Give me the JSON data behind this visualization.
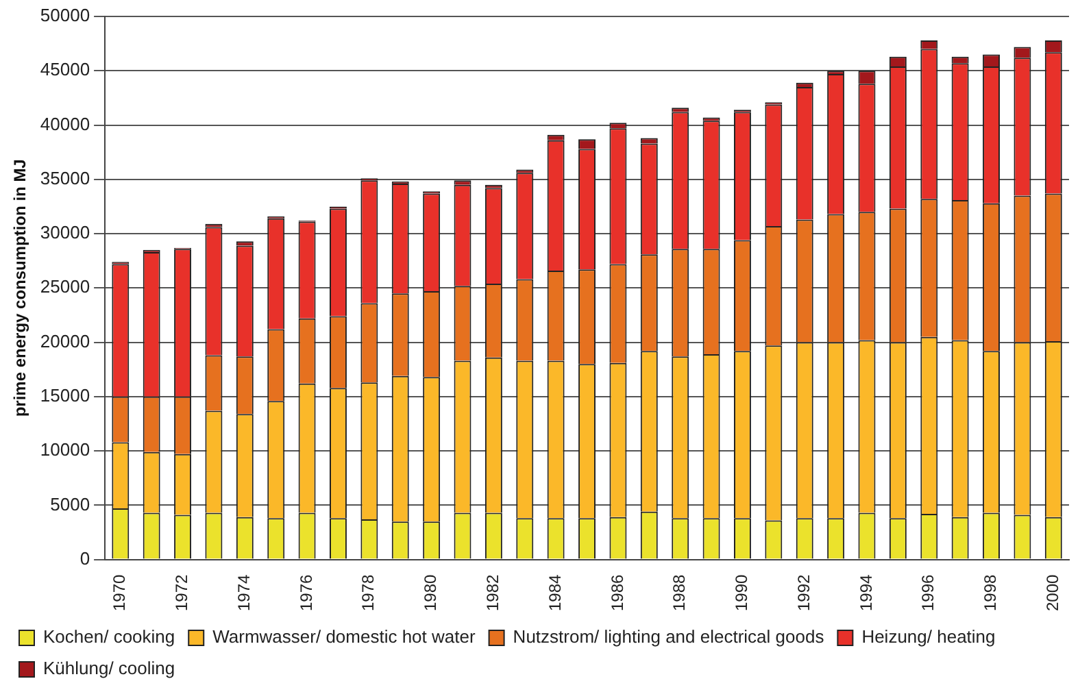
{
  "chart_data": {
    "type": "bar",
    "stacked": true,
    "ylabel": "prime energy consumption in MJ",
    "categories": [
      "1970",
      null,
      "1972",
      null,
      "1974",
      null,
      "1976",
      null,
      "1978",
      null,
      "1980",
      null,
      "1982",
      null,
      "1984",
      null,
      "1986",
      null,
      "1988",
      null,
      "1990",
      null,
      "1992",
      null,
      "1994",
      null,
      "1996",
      null,
      "1998",
      null,
      "2000"
    ],
    "series": [
      {
        "name": "Kochen/ cooking",
        "color": "#ebe22c",
        "values": [
          4700,
          4300,
          4100,
          4300,
          3900,
          3800,
          4300,
          3800,
          3700,
          3500,
          3500,
          4300,
          4300,
          3800,
          3800,
          3800,
          3900,
          4400,
          3800,
          3800,
          3800,
          3600,
          3800,
          3800,
          4300,
          3800,
          4200,
          3900,
          4300,
          4100,
          3900
        ]
      },
      {
        "name": "Warmwasser/ domestic hot water",
        "color": "#fbb829",
        "values": [
          6100,
          5600,
          5600,
          9400,
          9500,
          10800,
          11900,
          12000,
          12600,
          13400,
          13300,
          14000,
          14300,
          14500,
          14500,
          14200,
          14200,
          14800,
          14900,
          15100,
          15400,
          16100,
          16200,
          16200,
          15900,
          16200,
          16300,
          16300,
          14900,
          15900,
          16200
        ]
      },
      {
        "name": "Nutzstrom/ lighting and electrical goods",
        "color": "#e6711f",
        "values": [
          4200,
          5100,
          5300,
          5100,
          5300,
          6600,
          6000,
          6600,
          7300,
          7600,
          7900,
          6900,
          6800,
          7500,
          8300,
          8700,
          9100,
          8900,
          9900,
          9700,
          10200,
          11000,
          11300,
          11800,
          11800,
          12300,
          12700,
          12900,
          13600,
          13500,
          13600
        ]
      },
      {
        "name": "Heizung/ heating",
        "color": "#e8312a",
        "values": [
          12200,
          13300,
          13600,
          11800,
          10200,
          10200,
          8900,
          9900,
          11300,
          10100,
          9000,
          9300,
          8800,
          9800,
          12000,
          11100,
          12500,
          10200,
          12600,
          11800,
          11800,
          11200,
          12200,
          12900,
          11800,
          13100,
          13800,
          12600,
          12600,
          12700,
          13000
        ]
      },
      {
        "name": "Kühlung/ cooling",
        "color": "#a3181c",
        "values": [
          200,
          200,
          100,
          300,
          400,
          200,
          100,
          200,
          200,
          200,
          200,
          400,
          300,
          300,
          500,
          900,
          500,
          500,
          400,
          300,
          200,
          200,
          400,
          300,
          1200,
          900,
          800,
          600,
          1100,
          1000,
          1100
        ]
      }
    ],
    "ylim": [
      0,
      50000
    ],
    "yticks": [
      0,
      5000,
      10000,
      15000,
      20000,
      25000,
      30000,
      35000,
      40000,
      45000,
      50000
    ],
    "grid": "y",
    "legend": "bottom"
  }
}
